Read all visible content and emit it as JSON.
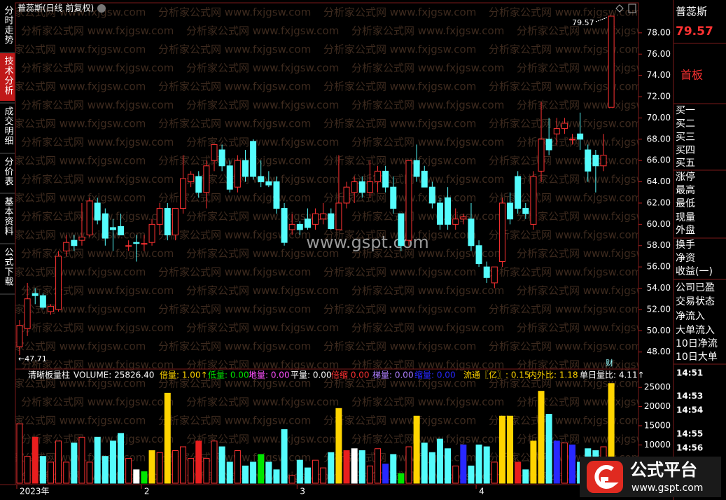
{
  "title": "普蕊斯(日线 前复权)",
  "watermark": "分析家公式网 www.fxjgsw.com",
  "site": "www.gspt.com",
  "tabs": [
    {
      "label": "分时走势"
    },
    {
      "label": "技术分析",
      "active": true
    },
    {
      "label": "成交明细"
    },
    {
      "label": "分价表"
    },
    {
      "label": "基本资料"
    },
    {
      "label": "公式下载"
    }
  ],
  "quote": {
    "name": "普蕊斯",
    "price": "79.57",
    "tag": "首板",
    "fields": [
      "买一",
      "买二",
      "买三",
      "买四",
      "买五",
      "涨停",
      "最高",
      "最低",
      "现量",
      "外盘",
      "换手",
      "净资",
      "收益(一)",
      "公司已盈",
      "交易状态",
      "净流入",
      "大单流入",
      "10日净流",
      "10日大单"
    ]
  },
  "times": [
    "14:51",
    "14:53",
    "14:54",
    "14:55",
    "14:56"
  ],
  "logo": {
    "name": "公式平台",
    "url": "www.gspt.com"
  },
  "chart_data": [
    {
      "type": "candlestick",
      "up_color": "#ff3232",
      "down_color": "#54fcfc",
      "categories": [
        "2023年",
        null,
        null,
        null,
        null,
        null,
        null,
        null,
        null,
        null,
        null,
        null,
        null,
        null,
        null,
        null,
        "2",
        null,
        null,
        null,
        null,
        null,
        null,
        null,
        null,
        null,
        null,
        null,
        null,
        null,
        null,
        null,
        null,
        null,
        null,
        null,
        "3",
        null,
        null,
        null,
        null,
        null,
        null,
        null,
        null,
        null,
        null,
        null,
        null,
        null,
        null,
        null,
        null,
        null,
        null,
        null,
        null,
        null,
        null,
        "4",
        null,
        null,
        null,
        null,
        null,
        null,
        null,
        null,
        null,
        null,
        null,
        null,
        null,
        null,
        null,
        null,
        null
      ],
      "open": [
        48.5,
        50.2,
        53.5,
        53.3,
        51.8,
        52,
        57.5,
        58.5,
        58.5,
        59,
        62,
        61,
        59.7,
        59.8,
        58,
        58.3,
        58.2,
        58.3,
        60,
        61.5,
        59,
        61.5,
        64,
        64.5,
        63,
        66,
        67,
        65.5,
        63.5,
        66,
        67.8,
        64.5,
        64,
        64,
        61.5,
        59.5,
        60,
        60.5,
        60,
        60.5,
        61,
        59.5,
        62,
        63,
        64,
        63,
        64,
        65,
        63.5,
        61,
        58.5,
        66,
        65,
        63.5,
        62,
        62.5,
        60,
        60.5,
        60.5,
        58,
        56,
        54.5,
        56.5,
        62,
        64.5,
        61.5,
        60,
        65,
        68,
        68.5,
        69,
        68,
        68.5,
        67,
        66.5,
        65.5,
        71
      ],
      "high": [
        51,
        54.5,
        54,
        53.5,
        52.5,
        57.5,
        59,
        59,
        62,
        62.5,
        62.5,
        61.5,
        60.5,
        61,
        58.5,
        59,
        59,
        60.5,
        62,
        62,
        61.5,
        66.5,
        65,
        65,
        66,
        67.5,
        67.5,
        66,
        66.5,
        67,
        68,
        66,
        65,
        64.5,
        62,
        61,
        60.3,
        61.5,
        61.5,
        62,
        61.5,
        66.5,
        64,
        64.5,
        64.5,
        66,
        65.5,
        65.5,
        64.5,
        61,
        66,
        67.5,
        65.5,
        64,
        62.5,
        63.5,
        61.5,
        61,
        62,
        58.5,
        56.5,
        56,
        62.5,
        63,
        65,
        62,
        65,
        71.5,
        70,
        70,
        70,
        68.5,
        70.5,
        67.5,
        67,
        68.5,
        79.57
      ],
      "low": [
        47.71,
        49.5,
        52.5,
        52,
        51.5,
        51.8,
        57,
        57.5,
        58,
        58.8,
        60,
        58,
        57.5,
        59,
        57.5,
        56.5,
        57.5,
        58,
        59,
        58.5,
        58.5,
        61,
        63.5,
        62.5,
        61.5,
        65,
        65,
        63,
        63,
        64,
        64.2,
        63.5,
        63.5,
        61,
        58,
        59,
        59,
        59.5,
        59.5,
        60,
        59.5,
        59.5,
        61.5,
        62,
        62.5,
        62.5,
        63,
        63,
        61,
        57.5,
        58,
        64,
        63.5,
        61.5,
        59.5,
        59.5,
        59.5,
        60,
        57.5,
        56,
        54.5,
        54,
        56,
        60,
        61,
        60.5,
        59.5,
        64,
        66.5,
        67.5,
        68.5,
        67.5,
        67,
        64,
        63,
        65,
        71
      ],
      "close": [
        50.5,
        53,
        53.3,
        52.2,
        52.3,
        57,
        58.3,
        58,
        58.8,
        62.2,
        60.4,
        58.7,
        59.5,
        59,
        58,
        58.2,
        58.2,
        60,
        61.5,
        59,
        61.5,
        64.3,
        64.7,
        63,
        65.5,
        67.5,
        65.5,
        63.3,
        66,
        64.5,
        64.5,
        64,
        63.7,
        61.5,
        58.3,
        60,
        59.5,
        59.7,
        61,
        61,
        59.6,
        62,
        63.5,
        64,
        63,
        64,
        65,
        63.5,
        61.5,
        58,
        66,
        64.5,
        63.5,
        62,
        60,
        60,
        60.5,
        60.7,
        58,
        56.3,
        55,
        56,
        62,
        60.5,
        61.5,
        61,
        64.5,
        68,
        67,
        69,
        69.5,
        68,
        68,
        65,
        65.5,
        66.5,
        79.57
      ],
      "annotations": [
        {
          "value": 79.57,
          "label": "79.57"
        },
        {
          "value": 47.71,
          "label": "←47.71"
        }
      ],
      "note": "财",
      "ylim": [
        46.4,
        79.9
      ],
      "yticks": [
        {
          "value": 48,
          "label": "48.00"
        },
        {
          "value": 50,
          "label": "50.00"
        },
        {
          "value": 52,
          "label": "52.00"
        },
        {
          "value": 54,
          "label": "54.00"
        },
        {
          "value": 56,
          "label": "56.00"
        },
        {
          "value": 58,
          "label": "58.00"
        },
        {
          "value": 60,
          "label": "60.00"
        },
        {
          "value": 62,
          "label": "62.00"
        },
        {
          "value": 64,
          "label": "64.00"
        },
        {
          "value": 66,
          "label": "66.00"
        },
        {
          "value": 68,
          "label": "68.00"
        },
        {
          "value": 70,
          "label": "70.00"
        },
        {
          "value": 72,
          "label": "72.00"
        },
        {
          "value": 74,
          "label": "74.00"
        },
        {
          "value": 76,
          "label": "76.00"
        },
        {
          "value": 78,
          "label": "78.00"
        }
      ]
    },
    {
      "type": "bar",
      "up_color": "#ff3232",
      "legend": [
        {
          "text": "清晰板量柱",
          "color": "#ffffff"
        },
        {
          "text": "VOLUME: 25826.40",
          "color": "#ffffff"
        },
        {
          "text": "倍量: 1.00↑",
          "color": "#ffd400"
        },
        {
          "text": "低量: 0.00",
          "color": "#00e600"
        },
        {
          "text": "地量: 0.00",
          "color": "#ff50ff"
        },
        {
          "text": "平量: 0.00",
          "color": "#ffffff"
        },
        {
          "text": "倍缩 0.00",
          "color": "#ff3232"
        },
        {
          "text": "梯量: 0.00",
          "color": "#b080ff"
        },
        {
          "text": "缩量: 0.00",
          "color": "#2828ff"
        },
        {
          "text": "流通〖亿〗: 0.15",
          "color": "#ffd400"
        },
        {
          "text": "内外比: 1.18",
          "color": "#ffd400"
        },
        {
          "text": "单日量比: 4.11↑",
          "color": "#ffffff"
        }
      ],
      "values": [
        15500,
        7000,
        12000,
        7000,
        5500,
        11000,
        5500,
        10500,
        12000,
        5500,
        12000,
        7000,
        11000,
        13000,
        6500,
        3500,
        3000,
        8500,
        8000,
        23500,
        8500,
        9500,
        6500,
        11000,
        6500,
        11000,
        9500,
        5500,
        8500,
        4500,
        5500,
        7500,
        5500,
        3500,
        14000,
        2000,
        6000,
        4000,
        6000,
        4000,
        8000,
        19500,
        8500,
        9000,
        8500,
        4500,
        9000,
        5000,
        7500,
        2500,
        9500,
        17500,
        10500,
        8000,
        11500,
        9000,
        4500,
        10000,
        4500,
        10000,
        9500,
        5500,
        17500,
        17500,
        5500,
        3500,
        11000,
        24000,
        18000,
        11000,
        10500,
        10000,
        5500,
        9000,
        8500,
        9500,
        26000
      ],
      "colors": [
        "#ff3232",
        "#ff3232",
        "#e81e1e",
        "#54fcfc",
        "#ff3232",
        "#ff3232",
        "#ff3232",
        "#54fcfc",
        "#ff3232",
        "#ff3232",
        "#54fcfc",
        "#54fcfc",
        "#54fcfc",
        "#54fcfc",
        "#ff3232",
        "#ffffff",
        "#00e600",
        "#ffd400",
        "#ff3232",
        "#ffd400",
        "#ff3232",
        "#ff3232",
        "#ff3232",
        "#e81e1e",
        "#ff3232",
        "#ff3232",
        "#54fcfc",
        "#54fcfc",
        "#ff3232",
        "#54fcfc",
        "#54fcfc",
        "#00e600",
        "#54fcfc",
        "#54fcfc",
        "#54fcfc",
        "#ff3232",
        "#54fcfc",
        "#54fcfc",
        "#ff3232",
        "#ff3232",
        "#54fcfc",
        "#ffd400",
        "#e81e1e",
        "#ffffff",
        "#54fcfc",
        "#ff3232",
        "#ff3232",
        "#2828ff",
        "#54fcfc",
        "#00e600",
        "#ff3232",
        "#ffd400",
        "#54fcfc",
        "#54fcfc",
        "#54fcfc",
        "#54fcfc",
        "#ff3232",
        "#2828ff",
        "#54fcfc",
        "#54fcfc",
        "#54fcfc",
        "#ff3232",
        "#ffd400",
        "#ffd400",
        "#e81e1e",
        "#54fcfc",
        "#ffd400",
        "#ffd400",
        "#54fcfc",
        "#2828ff",
        "#ff3232",
        "#2828ff",
        "#54fcfc",
        "#54fcfc",
        "#54fcfc",
        "#ff3232",
        "#ffd400"
      ],
      "ylim": [
        0,
        26500
      ],
      "yticks": [
        5000,
        10000,
        15000,
        20000,
        25000
      ]
    }
  ]
}
